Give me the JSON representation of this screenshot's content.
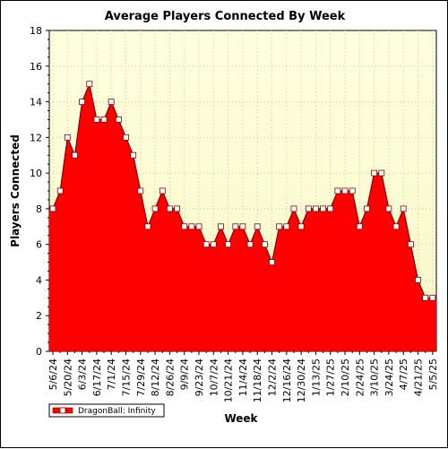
{
  "chart_data": {
    "type": "area",
    "title": "Average Players Connected By Week",
    "xlabel": "Week",
    "ylabel": "Players Connected",
    "ylim": [
      0,
      18
    ],
    "yticks": [
      "0",
      "2",
      "4",
      "6",
      "8",
      "10",
      "12",
      "14",
      "16",
      "18"
    ],
    "x_tick_labels": [
      "5/6/24",
      "5/20/24",
      "6/3/24",
      "6/17/24",
      "7/1/24",
      "7/15/24",
      "7/29/24",
      "8/12/24",
      "8/26/24",
      "9/9/24",
      "9/23/24",
      "10/7/24",
      "10/21/24",
      "11/4/24",
      "11/18/24",
      "12/2/24",
      "12/16/24",
      "12/30/24",
      "1/13/25",
      "1/27/25",
      "2/10/25",
      "2/24/25",
      "3/10/25",
      "3/24/25",
      "4/7/25",
      "4/21/25",
      "5/5/25"
    ],
    "grid": true,
    "legend_position": "bottom-left",
    "series": [
      {
        "name": "DragonBall: Infinity",
        "color": "#ff0000",
        "values": [
          8,
          9,
          12,
          11,
          14,
          15,
          13,
          13,
          14,
          13,
          12,
          11,
          9,
          7,
          8,
          9,
          8,
          8,
          7,
          7,
          7,
          6,
          6,
          7,
          6,
          7,
          7,
          6,
          7,
          6,
          5,
          7,
          7,
          8,
          7,
          8,
          8,
          8,
          8,
          9,
          9,
          9,
          7,
          8,
          10,
          10,
          8,
          7,
          8,
          6,
          4,
          3,
          3
        ]
      }
    ]
  },
  "colors": {
    "fill": "#ff0000",
    "outline": "#800000",
    "plot_top": "#ffffe0",
    "plot_bottom": "#f8f8c8",
    "grid": "#c8c8a0",
    "marker_fill": "#ffffff"
  }
}
